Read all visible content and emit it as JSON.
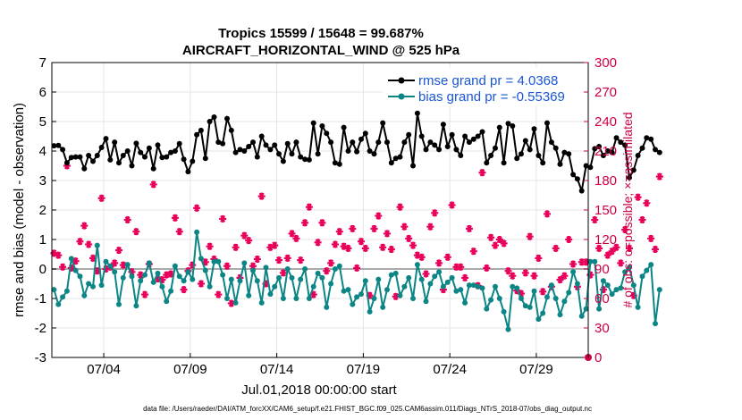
{
  "chart_data": {
    "type": "line",
    "title_line1": "Tropics 15599 / 15648 = 99.687%",
    "title_line2": "AIRCRAFT_HORIZONTAL_WIND @ 525 hPa",
    "ylabel": "rmse and bias (model - observation)",
    "ylabel_right": "# of obs: o=possible; ×=assimilated",
    "xlabel": "Jul.01,2018 00:00:00 start",
    "footer": "data file: /Users/raeder/DAI/ATM_forcXX/CAM6_setup/f.e21.FHIST_BGC.f09_025.CAM6assim.011/Diags_NTrS_2018-07/obs_diag_output.nc",
    "xlim": [
      1,
      32
    ],
    "ylim": [
      -3,
      7
    ],
    "ylim_right": [
      0,
      300
    ],
    "xticks": [
      4,
      9,
      14,
      19,
      24,
      29
    ],
    "xtick_labels": [
      "07/04",
      "07/09",
      "07/14",
      "07/19",
      "07/24",
      "07/29"
    ],
    "yticks": [
      -3,
      -2,
      -1,
      0,
      1,
      2,
      3,
      4,
      5,
      6,
      7
    ],
    "ytick_labels": [
      "-3",
      "-2",
      "-1",
      "0",
      "1",
      "2",
      "3",
      "4",
      "5",
      "6",
      "7"
    ],
    "yticks_right": [
      0,
      30,
      60,
      90,
      120,
      150,
      180,
      210,
      240,
      270,
      300
    ],
    "ytick_labels_right": [
      "0",
      "30",
      "60",
      "90",
      "120",
      "150",
      "180",
      "210",
      "240",
      "270",
      "300"
    ],
    "grid": true,
    "legend_position": "top-right",
    "time_step_days": 0.25,
    "x_start": 1.125,
    "series": [
      {
        "name": "rmse grand pr = 4.0368",
        "color": "#000000",
        "marker": "circle",
        "values": [
          4.18,
          4.19,
          4.05,
          3.6,
          3.78,
          3.8,
          3.8,
          3.4,
          3.85,
          3.65,
          3.85,
          4.12,
          4.42,
          3.7,
          4.3,
          3.6,
          3.85,
          4.0,
          3.5,
          4.26,
          3.95,
          3.8,
          4.1,
          3.4,
          4.2,
          3.78,
          3.8,
          3.95,
          4.0,
          4.25,
          3.72,
          3.3,
          3.65,
          4.55,
          4.7,
          3.75,
          5.0,
          5.15,
          4.3,
          4.25,
          5.1,
          4.7,
          3.95,
          4.05,
          4.0,
          4.15,
          4.3,
          3.8,
          4.5,
          4.2,
          4.05,
          4.2,
          3.9,
          3.65,
          4.25,
          3.9,
          4.3,
          3.8,
          3.72,
          3.7,
          4.95,
          3.9,
          4.85,
          4.6,
          4.3,
          3.6,
          3.55,
          4.8,
          4.0,
          4.3,
          3.98,
          4.4,
          4.6,
          4.0,
          3.9,
          4.3,
          4.95,
          4.3,
          3.6,
          3.75,
          3.8,
          4.3,
          4.55,
          3.5,
          5.28,
          4.5,
          4.05,
          4.3,
          4.2,
          4.05,
          4.9,
          4.15,
          4.55,
          4.05,
          3.85,
          4.5,
          4.3,
          4.4,
          4.5,
          4.65,
          3.6,
          3.85,
          4.1,
          4.8,
          3.6,
          4.93,
          4.85,
          3.75,
          3.9,
          4.35,
          4.05,
          4.75,
          3.85,
          3.6,
          4.95,
          4.3,
          4.1,
          3.55,
          3.95,
          3.9,
          3.2,
          3.05,
          2.65,
          3.5,
          3.45,
          4.08,
          4.15,
          3.85,
          4.0,
          3.95,
          4.45,
          4.3,
          4.2,
          3.1,
          3.35,
          3.85,
          4.1,
          4.45,
          4.4,
          4.05,
          3.95
        ]
      },
      {
        "name": "bias grand pr = -0.55369",
        "color": "#0b8585",
        "marker": "circle",
        "values": [
          -0.7,
          -1.2,
          -0.95,
          -0.75,
          0.35,
          -0.05,
          -0.25,
          -0.9,
          -0.5,
          -0.6,
          0.8,
          -0.55,
          0.25,
          0.1,
          -0.1,
          -1.2,
          -0.3,
          0.15,
          -0.25,
          -1.25,
          -0.4,
          -0.2,
          0.2,
          -0.45,
          -0.15,
          -0.6,
          -1.1,
          -0.75,
          0.1,
          -0.25,
          -0.4,
          -0.1,
          -0.35,
          1.25,
          0.35,
          -0.05,
          -0.6,
          0.25,
          0.25,
          -0.2,
          -1.0,
          -0.35,
          -1.15,
          -0.4,
          0.2,
          -0.9,
          -0.05,
          -0.4,
          -1.15,
          0.05,
          -0.85,
          -0.6,
          -0.3,
          -1.0,
          0.0,
          -0.3,
          -1.0,
          -0.35,
          0.0,
          -1.0,
          -0.6,
          -0.15,
          -0.3,
          -1.3,
          -0.5,
          0.0,
          0.1,
          -0.75,
          -0.7,
          -1.2,
          -0.95,
          -0.85,
          -0.4,
          -1.45,
          -1.0,
          -0.35,
          -1.3,
          -0.7,
          -0.2,
          -0.15,
          -0.9,
          -0.6,
          -0.3,
          -1.0,
          0.15,
          -0.35,
          -1.1,
          -0.5,
          -0.25,
          -0.1,
          -0.6,
          -0.45,
          -0.3,
          -0.75,
          -0.7,
          -1.15,
          -0.55,
          -0.55,
          -0.6,
          -0.65,
          -1.35,
          -1.05,
          -0.6,
          -1.0,
          -1.45,
          -2.05,
          -0.6,
          -0.65,
          -1.0,
          -1.25,
          -1.3,
          -0.75,
          -1.7,
          -1.5,
          -0.95,
          -0.55,
          -1.0,
          -1.55,
          -1.1,
          -0.8,
          -0.1,
          -0.5,
          -1.6,
          -1.35,
          0.25,
          0.25,
          -1.35,
          -0.4,
          -0.55,
          -0.85,
          -0.7,
          -0.65,
          -0.1,
          0.05,
          -0.55,
          -1.3,
          -0.25,
          -0.05,
          0.15,
          -1.85,
          -0.7
        ]
      }
    ],
    "obs_possible": {
      "color": "#cc0044",
      "marker": "circle",
      "x": [
        32
      ],
      "values": [
        0
      ]
    },
    "obs_assimilated": {
      "color": "#e8005a",
      "marker": "star",
      "values": [
        106,
        104,
        92,
        195,
        91,
        98,
        118,
        134,
        115,
        101,
        88,
        162,
        90,
        92,
        96,
        109,
        94,
        140,
        87,
        128,
        84,
        64,
        95,
        176,
        80,
        79,
        84,
        85,
        142,
        128,
        69,
        88,
        94,
        152,
        75,
        97,
        113,
        100,
        64,
        141,
        93,
        55,
        112,
        81,
        124,
        119,
        93,
        100,
        164,
        75,
        112,
        114,
        99,
        86,
        101,
        126,
        121,
        99,
        137,
        153,
        64,
        117,
        137,
        88,
        96,
        115,
        128,
        113,
        111,
        131,
        91,
        118,
        111,
        63,
        131,
        144,
        112,
        126,
        110,
        62,
        153,
        133,
        121,
        114,
        104,
        102,
        85,
        133,
        147,
        96,
        69,
        102,
        155,
        92,
        92,
        81,
        131,
        108,
        73,
        188,
        91,
        122,
        114,
        120,
        116,
        88,
        83,
        68,
        65,
        86,
        123,
        83,
        101,
        67,
        146,
        72,
        111,
        79,
        83,
        120,
        95,
        72,
        97,
        97,
        84,
        140,
        111,
        69,
        104,
        108,
        112,
        96,
        130,
        111,
        63,
        163,
        140,
        157,
        121,
        110,
        184
      ]
    },
    "legend": [
      {
        "label": "rmse grand pr = 4.0368",
        "color": "#000000"
      },
      {
        "label": "bias grand pr = -0.55369",
        "color": "#0b8585"
      }
    ]
  }
}
